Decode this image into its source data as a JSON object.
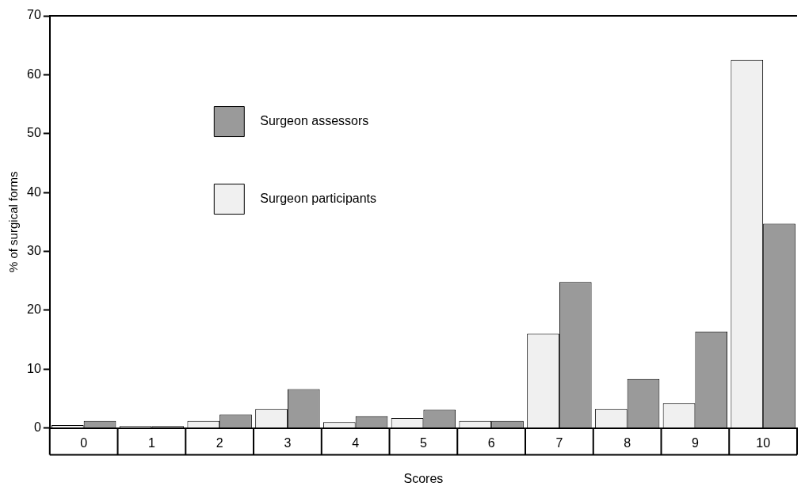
{
  "chart_data": {
    "type": "bar",
    "xlabel": "Scores",
    "ylabel": "% of surgical forms",
    "categories": [
      "0",
      "1",
      "2",
      "3",
      "4",
      "5",
      "6",
      "7",
      "8",
      "9",
      "10"
    ],
    "series": [
      {
        "name": "Surgeon participants",
        "color": "#f0f0f0",
        "values": [
          0.5,
          0.3,
          1.2,
          3.2,
          1.0,
          1.7,
          1.2,
          16,
          3.2,
          4.2,
          62.5
        ]
      },
      {
        "name": "Surgeon assessors",
        "color": "#9a9a9a",
        "values": [
          1.2,
          0.3,
          2.3,
          6.6,
          2.0,
          3.1,
          1.2,
          24.8,
          8.3,
          16.4,
          34.7
        ]
      }
    ],
    "ylim": [
      0,
      70
    ],
    "yticks": [
      0,
      10,
      20,
      30,
      40,
      50,
      60,
      70
    ],
    "grid": false,
    "legend": "top"
  }
}
